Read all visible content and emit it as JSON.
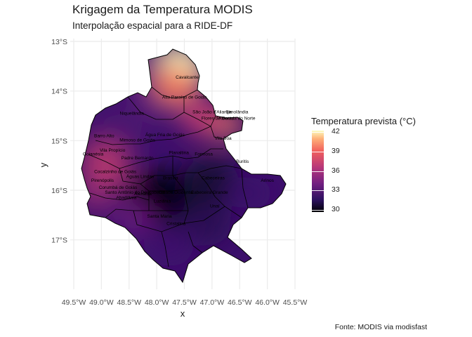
{
  "title": "Krigagem da Temperatura MODIS",
  "subtitle": "Interpolação espacial para a RIDE-DF",
  "caption": "Fonte: MODIS via modisfast",
  "chart_data": {
    "type": "heatmap",
    "xlabel": "x",
    "ylabel": "y",
    "x_ticks": [
      "49.5°W",
      "49.0°W",
      "48.5°W",
      "48.0°W",
      "47.5°W",
      "47.0°W",
      "46.5°W",
      "46.0°W",
      "45.5°W"
    ],
    "y_ticks": [
      "13°S",
      "14°S",
      "15°S",
      "16°S",
      "17°S"
    ],
    "xlim": [
      -49.5,
      -45.5
    ],
    "ylim": [
      -17.5,
      -13.0
    ],
    "grid": true,
    "legend": {
      "title": "Temperatura prevista (°C)",
      "position": "right",
      "breaks": [
        "42",
        "39",
        "36",
        "33",
        "30"
      ],
      "range": [
        29.7,
        42.2
      ],
      "palette": "magma"
    },
    "hotspots": [
      {
        "lon": -47.25,
        "lat": -13.55,
        "temp": 42
      },
      {
        "lon": -46.7,
        "lat": -14.4,
        "temp": 40
      },
      {
        "lon": -48.8,
        "lat": -15.35,
        "temp": 37
      },
      {
        "lon": -47.0,
        "lat": -14.3,
        "temp": 37
      }
    ],
    "coldspots": [
      {
        "lon": -47.8,
        "lat": -15.9,
        "temp": 30
      },
      {
        "lon": -46.9,
        "lat": -15.6,
        "temp": 31
      }
    ]
  },
  "places": [
    {
      "name": "Cavalcante",
      "lon": -47.45,
      "lat": -13.75
    },
    {
      "name": "Alto Paraíso de Goiás",
      "lon": -47.5,
      "lat": -14.15
    },
    {
      "name": "Niquelândia",
      "lon": -48.45,
      "lat": -14.48
    },
    {
      "name": "São João d'Aliança",
      "lon": -47.0,
      "lat": -14.45
    },
    {
      "name": "Simolândia",
      "lon": -46.55,
      "lat": -14.45
    },
    {
      "name": "Flores de Goiás",
      "lon": -46.9,
      "lat": -14.58
    },
    {
      "name": "Alvorada do Norte",
      "lon": -46.55,
      "lat": -14.58
    },
    {
      "name": "Barro Alto",
      "lon": -48.95,
      "lat": -14.93
    },
    {
      "name": "Vila Boa",
      "lon": -46.8,
      "lat": -14.98
    },
    {
      "name": "Água Fria de Goiás",
      "lon": -47.85,
      "lat": -14.91
    },
    {
      "name": "Mimoso de Goiás",
      "lon": -48.35,
      "lat": -15.02
    },
    {
      "name": "Goianésia",
      "lon": -49.15,
      "lat": -15.3
    },
    {
      "name": "Vila Propício",
      "lon": -48.8,
      "lat": -15.22
    },
    {
      "name": "Padre Bernardo",
      "lon": -48.35,
      "lat": -15.38
    },
    {
      "name": "Planaltina",
      "lon": -47.6,
      "lat": -15.27
    },
    {
      "name": "Formosa",
      "lon": -47.15,
      "lat": -15.3
    },
    {
      "name": "Buritis",
      "lon": -46.45,
      "lat": -15.45
    },
    {
      "name": "Cocalzinho de Goiás",
      "lon": -48.75,
      "lat": -15.65
    },
    {
      "name": "Águas Lindas",
      "lon": -48.3,
      "lat": -15.75
    },
    {
      "name": "Pirenópolis",
      "lon": -48.98,
      "lat": -15.83
    },
    {
      "name": "Brasília",
      "lon": -47.75,
      "lat": -15.78
    },
    {
      "name": "Cabeceiras",
      "lon": -46.98,
      "lat": -15.78
    },
    {
      "name": "Arinos",
      "lon": -46.0,
      "lat": -15.83
    },
    {
      "name": "Corumbá de Goiás",
      "lon": -48.7,
      "lat": -15.97
    },
    {
      "name": "Santo Antônio do Descoberto",
      "lon": -48.4,
      "lat": -16.07
    },
    {
      "name": "Cidade Ocidental",
      "lon": -47.65,
      "lat": -16.07
    },
    {
      "name": "Cabeceira Grande",
      "lon": -47.05,
      "lat": -16.07
    },
    {
      "name": "Luziânia",
      "lon": -47.9,
      "lat": -16.25
    },
    {
      "name": "Unaí",
      "lon": -46.95,
      "lat": -16.35
    },
    {
      "name": "Cristalina",
      "lon": -47.65,
      "lat": -16.7
    },
    {
      "name": "Alexânia",
      "lon": -48.25,
      "lat": -16.1
    },
    {
      "name": "Abadiânia",
      "lon": -48.55,
      "lat": -16.18
    },
    {
      "name": "Santa Maria",
      "lon": -47.95,
      "lat": -16.55
    }
  ]
}
